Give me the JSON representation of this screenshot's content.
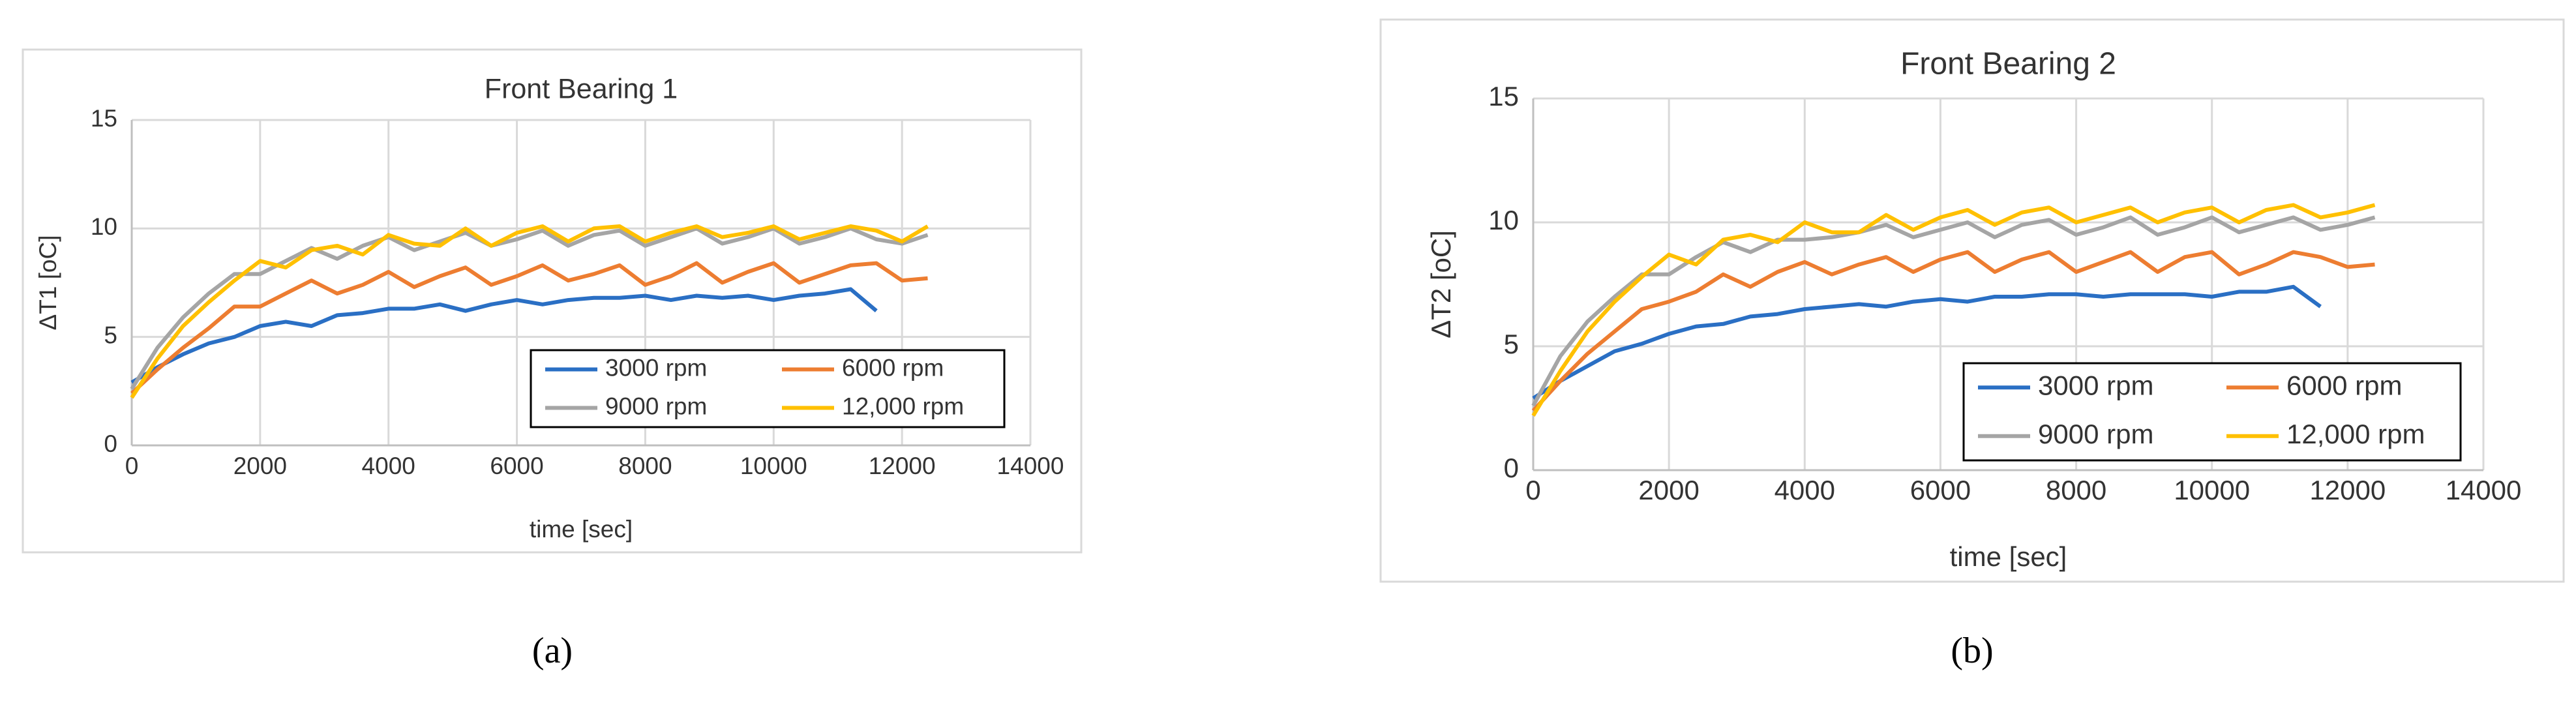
{
  "chart_data": [
    {
      "type": "line",
      "title": "Front Bearing 1",
      "x_label": "time [sec]",
      "y_label": "ΔT1 [oC]",
      "caption": "(a)",
      "x": [
        0,
        400,
        800,
        1200,
        1600,
        2000,
        2400,
        2800,
        3200,
        3600,
        4000,
        4400,
        4800,
        5200,
        5600,
        6000,
        6400,
        6800,
        7200,
        7600,
        8000,
        8400,
        8800,
        9200,
        9600,
        10000,
        10400,
        10800,
        11200,
        11600,
        12000,
        12400
      ],
      "xlim": [
        0,
        14000
      ],
      "xticks": [
        0,
        2000,
        4000,
        6000,
        8000,
        10000,
        12000,
        14000
      ],
      "ylim": [
        0,
        15
      ],
      "yticks": [
        0,
        5,
        10,
        15
      ],
      "grid": true,
      "legend": "lower right",
      "series": [
        {
          "name": "3000 rpm",
          "color": "#2a6fc4",
          "values": [
            2.9,
            3.6,
            4.2,
            4.7,
            5.0,
            5.5,
            5.7,
            5.5,
            6.0,
            6.1,
            6.3,
            6.3,
            6.5,
            6.2,
            6.5,
            6.7,
            6.5,
            6.7,
            6.8,
            6.8,
            6.9,
            6.7,
            6.9,
            6.8,
            6.9,
            6.7,
            6.9,
            7.0,
            7.2,
            6.2,
            null,
            null
          ]
        },
        {
          "name": "6000 rpm",
          "color": "#ed7d31",
          "values": [
            2.4,
            3.5,
            4.5,
            5.4,
            6.4,
            6.4,
            7.0,
            7.6,
            7.0,
            7.4,
            8.0,
            7.3,
            7.8,
            8.2,
            7.4,
            7.8,
            8.3,
            7.6,
            7.9,
            8.3,
            7.4,
            7.8,
            8.4,
            7.5,
            8.0,
            8.4,
            7.5,
            7.9,
            8.3,
            8.4,
            7.6,
            7.7
          ]
        },
        {
          "name": "9000 rpm",
          "color": "#a5a5a5",
          "values": [
            2.6,
            4.5,
            5.9,
            7.0,
            7.9,
            7.9,
            8.5,
            9.1,
            8.6,
            9.2,
            9.6,
            9.0,
            9.4,
            9.8,
            9.2,
            9.5,
            9.9,
            9.2,
            9.7,
            9.9,
            9.2,
            9.6,
            10.0,
            9.3,
            9.6,
            10.0,
            9.3,
            9.6,
            10.0,
            9.5,
            9.3,
            9.7
          ]
        },
        {
          "name": "12,000 rpm",
          "color": "#ffc000",
          "values": [
            2.2,
            4.0,
            5.5,
            6.6,
            7.6,
            8.5,
            8.2,
            9.0,
            9.2,
            8.8,
            9.7,
            9.3,
            9.2,
            10.0,
            9.2,
            9.8,
            10.1,
            9.4,
            10.0,
            10.1,
            9.4,
            9.8,
            10.1,
            9.6,
            9.8,
            10.1,
            9.5,
            9.8,
            10.1,
            9.9,
            9.4,
            10.1
          ]
        }
      ]
    },
    {
      "type": "line",
      "title": "Front Bearing 2",
      "x_label": "time [sec]",
      "y_label": "ΔT2 [oC]",
      "caption": "(b)",
      "x": [
        0,
        400,
        800,
        1200,
        1600,
        2000,
        2400,
        2800,
        3200,
        3600,
        4000,
        4400,
        4800,
        5200,
        5600,
        6000,
        6400,
        6800,
        7200,
        7600,
        8000,
        8400,
        8800,
        9200,
        9600,
        10000,
        10400,
        10800,
        11200,
        11600,
        12000,
        12400
      ],
      "xlim": [
        0,
        14000
      ],
      "xticks": [
        0,
        2000,
        4000,
        6000,
        8000,
        10000,
        12000,
        14000
      ],
      "ylim": [
        0,
        15
      ],
      "yticks": [
        0,
        5,
        10,
        15
      ],
      "grid": true,
      "legend": "lower right",
      "series": [
        {
          "name": "3000 rpm",
          "color": "#2a6fc4",
          "values": [
            2.9,
            3.6,
            4.2,
            4.8,
            5.1,
            5.5,
            5.8,
            5.9,
            6.2,
            6.3,
            6.5,
            6.6,
            6.7,
            6.6,
            6.8,
            6.9,
            6.8,
            7.0,
            7.0,
            7.1,
            7.1,
            7.0,
            7.1,
            7.1,
            7.1,
            7.0,
            7.2,
            7.2,
            7.4,
            6.6,
            null,
            null
          ]
        },
        {
          "name": "6000 rpm",
          "color": "#ed7d31",
          "values": [
            2.4,
            3.6,
            4.7,
            5.6,
            6.5,
            6.8,
            7.2,
            7.9,
            7.4,
            8.0,
            8.4,
            7.9,
            8.3,
            8.6,
            8.0,
            8.5,
            8.8,
            8.0,
            8.5,
            8.8,
            8.0,
            8.4,
            8.8,
            8.0,
            8.6,
            8.8,
            7.9,
            8.3,
            8.8,
            8.6,
            8.2,
            8.3
          ]
        },
        {
          "name": "9000 rpm",
          "color": "#a5a5a5",
          "values": [
            2.6,
            4.6,
            6.0,
            7.0,
            7.9,
            7.9,
            8.6,
            9.2,
            8.8,
            9.3,
            9.3,
            9.4,
            9.6,
            9.9,
            9.4,
            9.7,
            10.0,
            9.4,
            9.9,
            10.1,
            9.5,
            9.8,
            10.2,
            9.5,
            9.8,
            10.2,
            9.6,
            9.9,
            10.2,
            9.7,
            9.9,
            10.2
          ]
        },
        {
          "name": "12,000 rpm",
          "color": "#ffc000",
          "values": [
            2.2,
            4.0,
            5.6,
            6.8,
            7.8,
            8.7,
            8.3,
            9.3,
            9.5,
            9.2,
            10.0,
            9.6,
            9.6,
            10.3,
            9.7,
            10.2,
            10.5,
            9.9,
            10.4,
            10.6,
            10.0,
            10.3,
            10.6,
            10.0,
            10.4,
            10.6,
            10.0,
            10.5,
            10.7,
            10.2,
            10.4,
            10.7
          ]
        }
      ]
    }
  ]
}
